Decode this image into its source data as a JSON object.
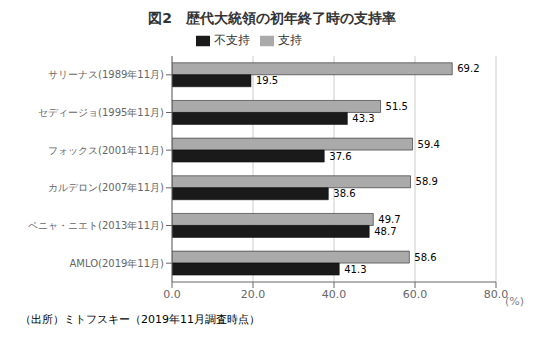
{
  "chart_data": {
    "type": "bar",
    "orientation": "horizontal",
    "title": "図2　歴代大統領の初年終了時の支持率",
    "categories": [
      "サリーナス(1989年11月)",
      "セディージョ(1995年11月)",
      "フォックス(2001年11月)",
      "カルデロン(2007年11月)",
      "ペニャ・ニエト(2013年11月)",
      "AMLO(2019年11月)"
    ],
    "series": [
      {
        "name": "支持",
        "color": "#aaaaaa",
        "values": [
          69.2,
          51.5,
          59.4,
          58.9,
          49.7,
          58.6
        ]
      },
      {
        "name": "不支持",
        "color": "#1a1a1a",
        "values": [
          19.5,
          43.3,
          37.6,
          38.6,
          48.7,
          41.3
        ]
      }
    ],
    "xlim": [
      0,
      80
    ],
    "xticks": [
      {
        "value": 0,
        "label": "0.0"
      },
      {
        "value": 20,
        "label": "20.0"
      },
      {
        "value": 40,
        "label": "40.0"
      },
      {
        "value": 60,
        "label": "60.0"
      },
      {
        "value": 80,
        "label": "80.0"
      }
    ],
    "xlabel": "(%)",
    "annotations": [
      "（出所）ミトフスキー（2019年11月調査時点）"
    ],
    "grid": true,
    "legend": "top",
    "data_labels": true
  }
}
